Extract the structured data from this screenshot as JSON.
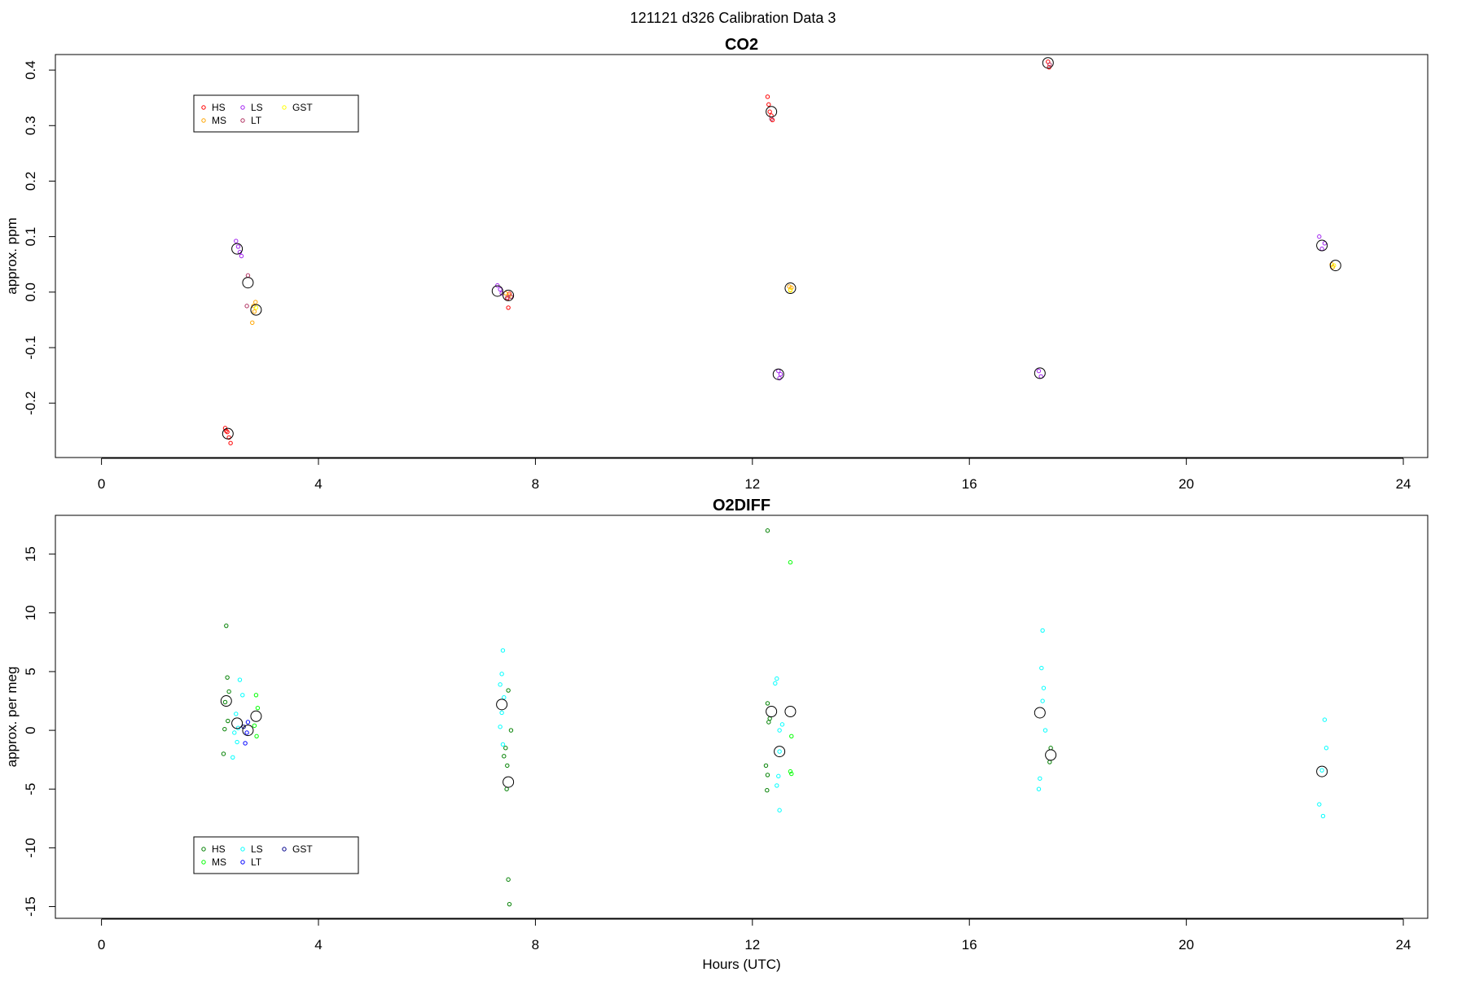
{
  "suptitle": "121121   d326   Calibration Data 3",
  "chart_data": [
    {
      "type": "scatter",
      "title": "CO2",
      "xlabel": "",
      "ylabel": "approx. ppm",
      "xlim": [
        -0.85,
        24.45
      ],
      "ylim": [
        -0.298,
        0.428
      ],
      "xticks": [
        0,
        4,
        8,
        12,
        16,
        20,
        24
      ],
      "yticks": [
        -0.2,
        -0.1,
        0.0,
        0.1,
        0.2,
        0.3,
        0.4
      ],
      "ytick_labels": [
        "-0.2",
        "-0.1",
        "0.0",
        "0.1",
        "0.2",
        "0.3",
        "0.4"
      ],
      "legend_location": "top-left",
      "series": [
        {
          "name": "HS",
          "color": "#ff0000",
          "points": [
            [
              2.28,
              -0.245
            ],
            [
              2.32,
              -0.252
            ],
            [
              2.35,
              -0.262
            ],
            [
              2.38,
              -0.272
            ],
            [
              2.3,
              -0.25
            ],
            [
              12.28,
              0.352
            ],
            [
              12.3,
              0.338
            ],
            [
              12.35,
              0.318
            ],
            [
              12.37,
              0.31
            ],
            [
              12.32,
              0.325
            ],
            [
              17.45,
              0.415
            ],
            [
              17.47,
              0.405
            ],
            [
              7.5,
              -0.028
            ],
            [
              7.48,
              -0.012
            ],
            [
              7.52,
              -0.003
            ]
          ]
        },
        {
          "name": "MS",
          "color": "#ffa500",
          "points": [
            [
              2.8,
              -0.025
            ],
            [
              2.82,
              -0.035
            ],
            [
              2.78,
              -0.055
            ],
            [
              2.84,
              -0.018
            ],
            [
              7.45,
              -0.002
            ],
            [
              7.52,
              -0.006
            ],
            [
              12.68,
              0.01
            ],
            [
              12.7,
              0.004
            ],
            [
              12.72,
              0.008
            ],
            [
              22.7,
              0.045
            ],
            [
              22.68,
              0.05
            ]
          ]
        },
        {
          "name": "LS",
          "color": "#a020f0",
          "points": [
            [
              2.48,
              0.092
            ],
            [
              2.52,
              0.082
            ],
            [
              2.55,
              0.072
            ],
            [
              2.58,
              0.065
            ],
            [
              7.3,
              0.012
            ],
            [
              7.35,
              0.005
            ],
            [
              7.38,
              -0.002
            ],
            [
              12.48,
              -0.142
            ],
            [
              12.5,
              -0.155
            ],
            [
              12.52,
              -0.148
            ],
            [
              17.28,
              -0.142
            ],
            [
              17.32,
              -0.152
            ],
            [
              22.45,
              0.1
            ],
            [
              22.5,
              0.078
            ],
            [
              22.55,
              0.088
            ]
          ]
        },
        {
          "name": "LT",
          "color": "#b03060",
          "points": [
            [
              2.7,
              0.03
            ],
            [
              2.68,
              -0.025
            ],
            [
              7.48,
              -0.01
            ],
            [
              7.55,
              -0.008
            ],
            [
              12.35,
              0.312
            ],
            [
              17.48,
              0.41
            ]
          ]
        },
        {
          "name": "GST",
          "color": "#ffff00",
          "points": [
            [
              2.85,
              -0.028
            ],
            [
              12.7,
              0.003
            ],
            [
              22.72,
              0.048
            ]
          ]
        }
      ],
      "means": [
        [
          2.33,
          -0.255
        ],
        [
          2.5,
          0.078
        ],
        [
          2.7,
          0.017
        ],
        [
          2.85,
          -0.032
        ],
        [
          7.3,
          0.002
        ],
        [
          7.5,
          -0.006
        ],
        [
          12.35,
          0.325
        ],
        [
          12.48,
          -0.148
        ],
        [
          12.7,
          0.007
        ],
        [
          17.3,
          -0.146
        ],
        [
          17.45,
          0.413
        ],
        [
          22.5,
          0.084
        ],
        [
          22.75,
          0.048
        ]
      ]
    },
    {
      "type": "scatter",
      "title": "O2DIFF",
      "xlabel": "Hours (UTC)",
      "ylabel": "approx. per meg",
      "xlim": [
        -0.85,
        24.45
      ],
      "ylim": [
        -16.0,
        18.3
      ],
      "xticks": [
        0,
        4,
        8,
        12,
        16,
        20,
        24
      ],
      "yticks": [
        -15,
        -10,
        -5,
        0,
        5,
        10,
        15
      ],
      "ytick_labels": [
        "-15",
        "-10",
        "-5",
        "0",
        "5",
        "10",
        "15"
      ],
      "legend_location": "bottom-left",
      "series": [
        {
          "name": "HS",
          "color": "#008000",
          "points": [
            [
              2.3,
              8.9
            ],
            [
              2.32,
              4.5
            ],
            [
              2.35,
              3.3
            ],
            [
              2.28,
              2.4
            ],
            [
              2.33,
              0.8
            ],
            [
              2.27,
              0.1
            ],
            [
              2.25,
              -2.0
            ],
            [
              7.5,
              3.4
            ],
            [
              7.55,
              0.0
            ],
            [
              7.45,
              -1.5
            ],
            [
              7.42,
              -2.2
            ],
            [
              7.48,
              -3.0
            ],
            [
              7.47,
              -5.0
            ],
            [
              7.5,
              -12.7
            ],
            [
              7.52,
              -14.8
            ],
            [
              12.28,
              2.3
            ],
            [
              12.32,
              1.0
            ],
            [
              12.3,
              0.7
            ],
            [
              12.25,
              -3.0
            ],
            [
              12.28,
              -3.8
            ],
            [
              12.27,
              -5.1
            ],
            [
              12.28,
              17.0
            ],
            [
              17.5,
              -1.5
            ],
            [
              17.48,
              -2.7
            ]
          ]
        },
        {
          "name": "MS",
          "color": "#00ff00",
          "points": [
            [
              2.85,
              3.0
            ],
            [
              2.88,
              1.9
            ],
            [
              2.82,
              0.4
            ],
            [
              2.86,
              -0.5
            ],
            [
              12.7,
              14.3
            ],
            [
              12.72,
              -0.5
            ],
            [
              12.7,
              -3.5
            ],
            [
              12.72,
              -3.7
            ]
          ]
        },
        {
          "name": "LS",
          "color": "#00ffff",
          "points": [
            [
              2.55,
              4.3
            ],
            [
              2.6,
              3.0
            ],
            [
              2.48,
              1.4
            ],
            [
              2.52,
              0.2
            ],
            [
              2.45,
              -0.2
            ],
            [
              2.5,
              -1.0
            ],
            [
              2.42,
              -2.3
            ],
            [
              7.4,
              6.8
            ],
            [
              7.38,
              4.8
            ],
            [
              7.35,
              3.9
            ],
            [
              7.42,
              2.8
            ],
            [
              7.38,
              1.5
            ],
            [
              7.35,
              0.3
            ],
            [
              7.4,
              -1.2
            ],
            [
              12.45,
              4.4
            ],
            [
              12.42,
              4.0
            ],
            [
              12.55,
              0.5
            ],
            [
              12.5,
              0.0
            ],
            [
              12.5,
              -1.8
            ],
            [
              12.48,
              -3.9
            ],
            [
              12.45,
              -4.7
            ],
            [
              12.5,
              -6.8
            ],
            [
              17.35,
              8.5
            ],
            [
              17.33,
              5.3
            ],
            [
              17.37,
              3.6
            ],
            [
              17.35,
              2.5
            ],
            [
              17.4,
              0.0
            ],
            [
              17.3,
              -4.1
            ],
            [
              17.28,
              -5.0
            ],
            [
              22.55,
              0.9
            ],
            [
              22.58,
              -1.5
            ],
            [
              22.5,
              -3.4
            ],
            [
              22.45,
              -6.3
            ],
            [
              22.52,
              -7.3
            ]
          ]
        },
        {
          "name": "LT",
          "color": "#0000ff",
          "points": [
            [
              2.7,
              0.7
            ],
            [
              2.68,
              -0.2
            ],
            [
              2.65,
              -1.1
            ]
          ]
        },
        {
          "name": "GST",
          "color": "#00008b",
          "points": [
            [
              2.62,
              0.3
            ]
          ]
        }
      ],
      "means": [
        [
          2.3,
          2.5
        ],
        [
          2.5,
          0.6
        ],
        [
          2.7,
          0.0
        ],
        [
          2.85,
          1.2
        ],
        [
          7.38,
          2.2
        ],
        [
          7.5,
          -4.4
        ],
        [
          12.35,
          1.6
        ],
        [
          12.5,
          -1.8
        ],
        [
          12.7,
          1.6
        ],
        [
          17.3,
          1.5
        ],
        [
          17.5,
          -2.1
        ],
        [
          22.5,
          -3.5
        ]
      ]
    }
  ]
}
